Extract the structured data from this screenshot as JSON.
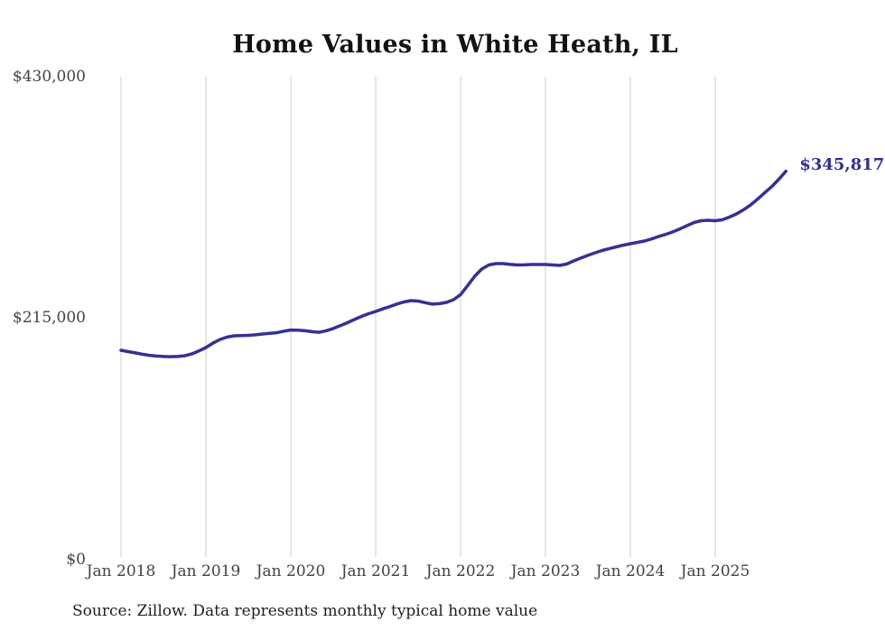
{
  "chart_data": {
    "type": "line",
    "title": "Home Values in White Heath, IL",
    "source_note": "Source: Zillow. Data represents monthly typical home value",
    "end_label": "$345,817",
    "line_color": "#363094",
    "grid": "vertical-only",
    "gridline_color": "#cccccc",
    "ylim": [
      0,
      430000
    ],
    "y_ticks": [
      {
        "label": "$430,000",
        "value": 430000
      },
      {
        "label": "$215,000",
        "value": 215000
      },
      {
        "label": "$0",
        "value": 0
      }
    ],
    "x_tick_labels": [
      "Jan 2018",
      "Jan 2019",
      "Jan 2020",
      "Jan 2021",
      "Jan 2022",
      "Jan 2023",
      "Jan 2024",
      "Jan 2025"
    ],
    "x_start_month": "2018-01",
    "x_end_month": "2025-11",
    "x_interval": "monthly",
    "values": [
      186500,
      185300,
      184100,
      182900,
      182000,
      181300,
      180900,
      180800,
      180900,
      181600,
      183200,
      185800,
      188900,
      192800,
      196100,
      198200,
      199300,
      199600,
      199700,
      200200,
      200900,
      201500,
      202100,
      203400,
      204500,
      204300,
      203800,
      203000,
      202500,
      203800,
      205800,
      208300,
      211000,
      213900,
      216600,
      219000,
      221000,
      223300,
      225400,
      227600,
      229500,
      230700,
      230300,
      228800,
      227500,
      227900,
      229100,
      231500,
      236000,
      244000,
      252400,
      258800,
      262400,
      263600,
      263600,
      262900,
      262400,
      262500,
      262800,
      262800,
      262800,
      262400,
      262000,
      263200,
      266000,
      268500,
      270900,
      273200,
      275300,
      277000,
      278500,
      280000,
      281300,
      282500,
      283700,
      285600,
      287700,
      289700,
      291800,
      294500,
      297400,
      300200,
      301800,
      302200,
      301800,
      302600,
      305000,
      307800,
      311500,
      315900,
      321100,
      326700,
      332300,
      338800,
      345817
    ],
    "last_value": 345817
  }
}
